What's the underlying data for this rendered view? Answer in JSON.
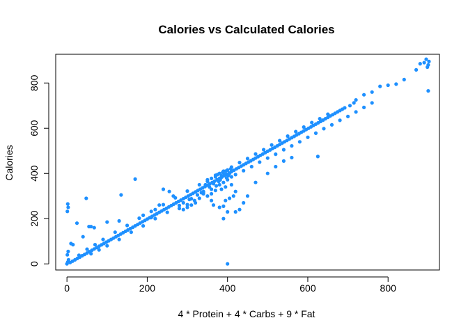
{
  "chart_data": {
    "type": "scatter",
    "title": "Calories vs Calculated Calories",
    "xlabel": "4 * Protein + 4 * Carbs + 9 * Fat",
    "ylabel": "Calories",
    "xlim": [
      -28,
      928
    ],
    "ylim": [
      -27,
      927
    ],
    "xticks": [
      0,
      200,
      400,
      600,
      800
    ],
    "yticks": [
      0,
      200,
      400,
      600,
      800
    ],
    "grid": false,
    "legend": "none",
    "point_color": "#1E90FF",
    "series": [
      {
        "points": [
          [
            0,
            0
          ],
          [
            2,
            8
          ],
          [
            4,
            18
          ],
          [
            1,
            40
          ],
          [
            3,
            55
          ],
          [
            2,
            265
          ],
          [
            3,
            250
          ],
          [
            1,
            232
          ],
          [
            8,
            6
          ],
          [
            14,
            12
          ],
          [
            20,
            18
          ],
          [
            26,
            24
          ],
          [
            32,
            30
          ],
          [
            38,
            36
          ],
          [
            44,
            42
          ],
          [
            50,
            48
          ],
          [
            56,
            54
          ],
          [
            62,
            60
          ],
          [
            68,
            66
          ],
          [
            74,
            72
          ],
          [
            80,
            78
          ],
          [
            86,
            84
          ],
          [
            92,
            90
          ],
          [
            98,
            96
          ],
          [
            104,
            102
          ],
          [
            110,
            108
          ],
          [
            116,
            114
          ],
          [
            122,
            120
          ],
          [
            128,
            126
          ],
          [
            134,
            132
          ],
          [
            140,
            138
          ],
          [
            146,
            144
          ],
          [
            152,
            150
          ],
          [
            158,
            156
          ],
          [
            164,
            162
          ],
          [
            170,
            168
          ],
          [
            176,
            174
          ],
          [
            182,
            180
          ],
          [
            188,
            186
          ],
          [
            194,
            192
          ],
          [
            200,
            198
          ],
          [
            206,
            204
          ],
          [
            212,
            210
          ],
          [
            218,
            216
          ],
          [
            224,
            222
          ],
          [
            230,
            228
          ],
          [
            236,
            234
          ],
          [
            242,
            240
          ],
          [
            248,
            246
          ],
          [
            254,
            252
          ],
          [
            260,
            258
          ],
          [
            266,
            264
          ],
          [
            272,
            270
          ],
          [
            278,
            276
          ],
          [
            284,
            282
          ],
          [
            290,
            288
          ],
          [
            296,
            294
          ],
          [
            302,
            300
          ],
          [
            308,
            306
          ],
          [
            314,
            312
          ],
          [
            320,
            318
          ],
          [
            326,
            324
          ],
          [
            332,
            330
          ],
          [
            338,
            336
          ],
          [
            344,
            342
          ],
          [
            350,
            348
          ],
          [
            356,
            354
          ],
          [
            362,
            360
          ],
          [
            368,
            366
          ],
          [
            374,
            372
          ],
          [
            380,
            378
          ],
          [
            386,
            384
          ],
          [
            392,
            390
          ],
          [
            398,
            396
          ],
          [
            404,
            402
          ],
          [
            410,
            408
          ],
          [
            416,
            414
          ],
          [
            422,
            420
          ],
          [
            428,
            426
          ],
          [
            434,
            432
          ],
          [
            440,
            438
          ],
          [
            446,
            444
          ],
          [
            452,
            450
          ],
          [
            458,
            456
          ],
          [
            464,
            462
          ],
          [
            470,
            468
          ],
          [
            476,
            474
          ],
          [
            482,
            480
          ],
          [
            488,
            486
          ],
          [
            494,
            492
          ],
          [
            500,
            498
          ],
          [
            506,
            504
          ],
          [
            512,
            510
          ],
          [
            518,
            516
          ],
          [
            524,
            522
          ],
          [
            530,
            528
          ],
          [
            536,
            534
          ],
          [
            542,
            540
          ],
          [
            548,
            546
          ],
          [
            554,
            552
          ],
          [
            560,
            558
          ],
          [
            566,
            564
          ],
          [
            572,
            570
          ],
          [
            578,
            576
          ],
          [
            584,
            582
          ],
          [
            590,
            588
          ],
          [
            596,
            594
          ],
          [
            602,
            600
          ],
          [
            608,
            606
          ],
          [
            614,
            612
          ],
          [
            620,
            618
          ],
          [
            626,
            624
          ],
          [
            632,
            630
          ],
          [
            638,
            636
          ],
          [
            644,
            642
          ],
          [
            650,
            648
          ],
          [
            656,
            654
          ],
          [
            662,
            660
          ],
          [
            668,
            666
          ],
          [
            674,
            672
          ],
          [
            680,
            678
          ],
          [
            686,
            684
          ],
          [
            692,
            690
          ],
          [
            60,
            45
          ],
          [
            80,
            62
          ],
          [
            100,
            80
          ],
          [
            130,
            108
          ],
          [
            160,
            140
          ],
          [
            190,
            168
          ],
          [
            220,
            200
          ],
          [
            250,
            228
          ],
          [
            280,
            258
          ],
          [
            310,
            288
          ],
          [
            340,
            315
          ],
          [
            360,
            330
          ],
          [
            380,
            350
          ],
          [
            400,
            372
          ],
          [
            420,
            395
          ],
          [
            440,
            412
          ],
          [
            460,
            430
          ],
          [
            480,
            450
          ],
          [
            500,
            468
          ],
          [
            520,
            485
          ],
          [
            540,
            505
          ],
          [
            560,
            522
          ],
          [
            580,
            540
          ],
          [
            600,
            560
          ],
          [
            620,
            578
          ],
          [
            640,
            598
          ],
          [
            660,
            615
          ],
          [
            680,
            635
          ],
          [
            700,
            652
          ],
          [
            720,
            672
          ],
          [
            740,
            692
          ],
          [
            760,
            712
          ],
          [
            30,
            38
          ],
          [
            50,
            65
          ],
          [
            70,
            85
          ],
          [
            90,
            108
          ],
          [
            120,
            140
          ],
          [
            150,
            170
          ],
          [
            180,
            202
          ],
          [
            210,
            232
          ],
          [
            240,
            262
          ],
          [
            270,
            292
          ],
          [
            300,
            322
          ],
          [
            330,
            350
          ],
          [
            350,
            372
          ],
          [
            370,
            392
          ],
          [
            390,
            410
          ],
          [
            410,
            428
          ],
          [
            430,
            448
          ],
          [
            450,
            466
          ],
          [
            470,
            486
          ],
          [
            490,
            505
          ],
          [
            510,
            526
          ],
          [
            530,
            545
          ],
          [
            550,
            565
          ],
          [
            570,
            585
          ],
          [
            590,
            605
          ],
          [
            610,
            625
          ],
          [
            630,
            642
          ],
          [
            650,
            662
          ],
          [
            345,
            350
          ],
          [
            350,
            365
          ],
          [
            355,
            340
          ],
          [
            360,
            378
          ],
          [
            365,
            355
          ],
          [
            370,
            385
          ],
          [
            372,
            345
          ],
          [
            375,
            395
          ],
          [
            378,
            365
          ],
          [
            380,
            400
          ],
          [
            382,
            372
          ],
          [
            385,
            390
          ],
          [
            388,
            405
          ],
          [
            390,
            360
          ],
          [
            392,
            395
          ],
          [
            395,
            410
          ],
          [
            398,
            380
          ],
          [
            400,
            415
          ],
          [
            402,
            390
          ],
          [
            405,
            400
          ],
          [
            408,
            420
          ],
          [
            410,
            385
          ],
          [
            385,
            330
          ],
          [
            370,
            325
          ],
          [
            360,
            310
          ],
          [
            350,
            300
          ],
          [
            395,
            340
          ],
          [
            410,
            350
          ],
          [
            360,
            280
          ],
          [
            365,
            260
          ],
          [
            380,
            250
          ],
          [
            390,
            255
          ],
          [
            400,
            230
          ],
          [
            395,
            280
          ],
          [
            405,
            290
          ],
          [
            415,
            300
          ],
          [
            420,
            320
          ],
          [
            340,
            320
          ],
          [
            330,
            290
          ],
          [
            320,
            270
          ],
          [
            310,
            260
          ],
          [
            300,
            250
          ],
          [
            290,
            240
          ],
          [
            280,
            245
          ],
          [
            290,
            270
          ],
          [
            305,
            285
          ],
          [
            325,
            305
          ],
          [
            335,
            315
          ],
          [
            318,
            280
          ],
          [
            390,
            200
          ],
          [
            340,
            310
          ],
          [
            300,
            262
          ],
          [
            10,
            90
          ],
          [
            15,
            85
          ],
          [
            25,
            180
          ],
          [
            40,
            120
          ],
          [
            48,
            290
          ],
          [
            55,
            165
          ],
          [
            60,
            165
          ],
          [
            68,
            160
          ],
          [
            100,
            185
          ],
          [
            130,
            190
          ],
          [
            135,
            305
          ],
          [
            170,
            375
          ],
          [
            190,
            215
          ],
          [
            210,
            205
          ],
          [
            240,
            330
          ],
          [
            255,
            320
          ],
          [
            265,
            300
          ],
          [
            230,
            260
          ],
          [
            220,
            240
          ],
          [
            450,
            300
          ],
          [
            440,
            270
          ],
          [
            430,
            240
          ],
          [
            420,
            230
          ],
          [
            470,
            360
          ],
          [
            500,
            400
          ],
          [
            520,
            430
          ],
          [
            540,
            455
          ],
          [
            560,
            470
          ],
          [
            625,
            475
          ],
          [
            400,
            0
          ],
          [
            880,
            885
          ],
          [
            890,
            890
          ],
          [
            895,
            905
          ],
          [
            898,
            870
          ],
          [
            900,
            880
          ],
          [
            902,
            895
          ],
          [
            900,
            765
          ],
          [
            870,
            858
          ],
          [
            840,
            815
          ],
          [
            820,
            795
          ],
          [
            800,
            790
          ],
          [
            780,
            785
          ],
          [
            760,
            760
          ],
          [
            740,
            748
          ],
          [
            720,
            725
          ],
          [
            715,
            712
          ],
          [
            705,
            700
          ]
        ]
      }
    ]
  }
}
